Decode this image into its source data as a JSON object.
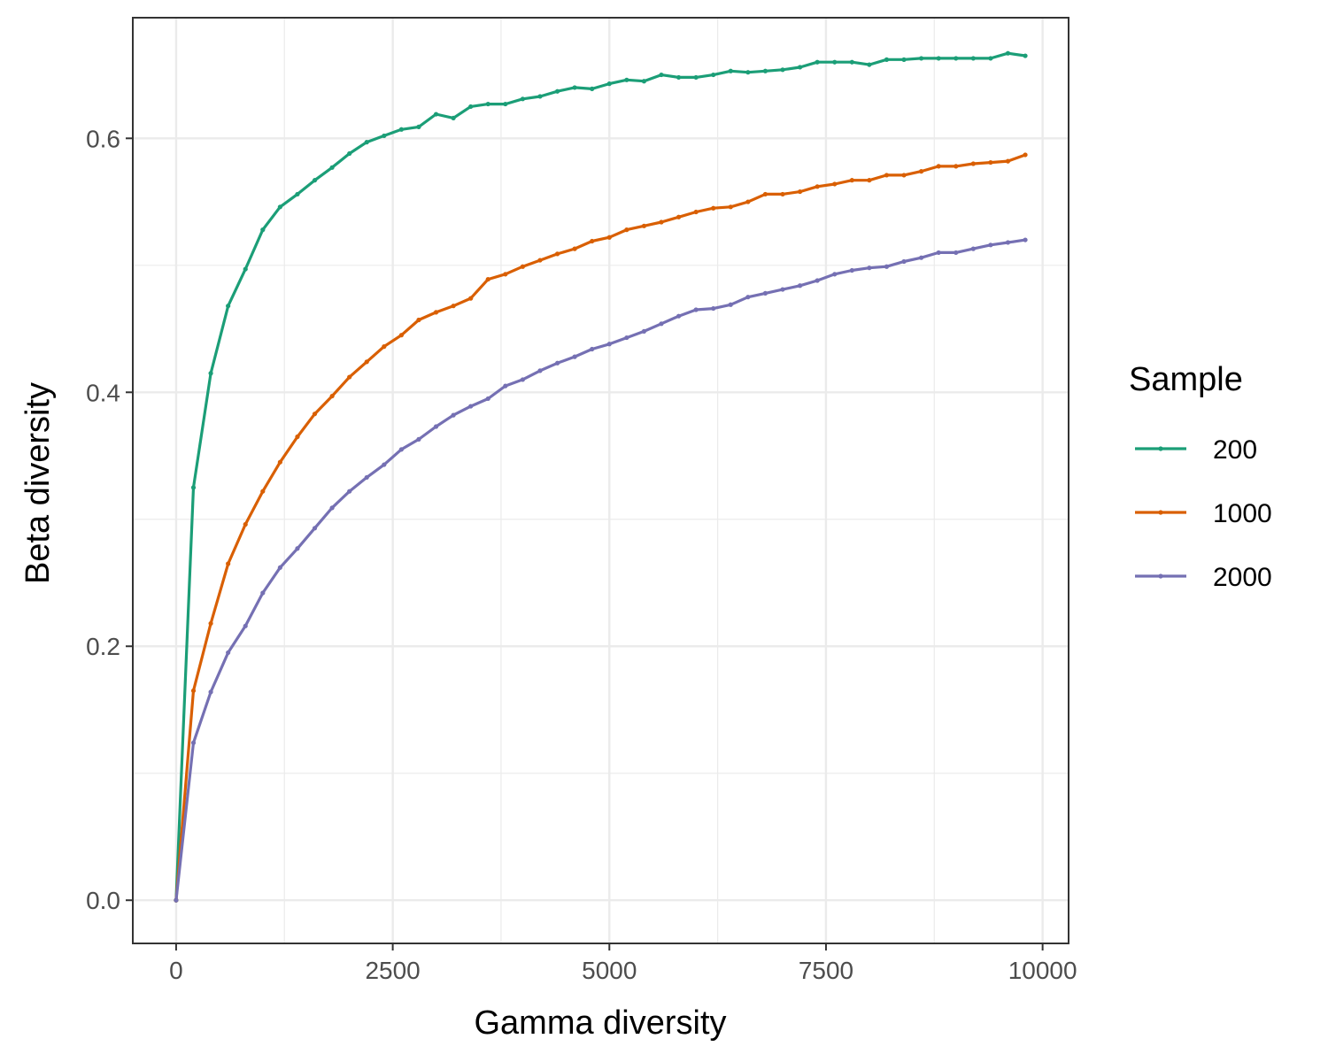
{
  "chart_data": {
    "type": "line",
    "xlabel": "Gamma diversity",
    "ylabel": "Beta diversity",
    "xlim": [
      -500,
      10300
    ],
    "ylim": [
      -0.034,
      0.695
    ],
    "xticks": [
      0,
      2500,
      5000,
      7500,
      10000
    ],
    "xtick_labels": [
      "0",
      "2500",
      "5000",
      "7500",
      "10000"
    ],
    "yticks": [
      0.0,
      0.2,
      0.4,
      0.6
    ],
    "ytick_labels": [
      "0.0",
      "0.2",
      "0.4",
      "0.6"
    ],
    "grid": true,
    "legend": {
      "title": "Sample",
      "position": "right"
    },
    "x": [
      0,
      200,
      400,
      600,
      800,
      1000,
      1200,
      1400,
      1600,
      1800,
      2000,
      2200,
      2400,
      2600,
      2800,
      3000,
      3200,
      3400,
      3600,
      3800,
      4000,
      4200,
      4400,
      4600,
      4800,
      5000,
      5200,
      5400,
      5600,
      5800,
      6000,
      6200,
      6400,
      6600,
      6800,
      7000,
      7200,
      7400,
      7600,
      7800,
      8000,
      8200,
      8400,
      8600,
      8800,
      9000,
      9200,
      9400,
      9600,
      9800
    ],
    "series": [
      {
        "name": "200",
        "color": "#1b9e77",
        "values": [
          0.0,
          0.325,
          0.415,
          0.468,
          0.497,
          0.528,
          0.546,
          0.556,
          0.567,
          0.577,
          0.588,
          0.597,
          0.602,
          0.607,
          0.609,
          0.619,
          0.616,
          0.625,
          0.627,
          0.627,
          0.631,
          0.633,
          0.637,
          0.64,
          0.639,
          0.643,
          0.646,
          0.645,
          0.65,
          0.648,
          0.648,
          0.65,
          0.653,
          0.652,
          0.653,
          0.654,
          0.656,
          0.66,
          0.66,
          0.66,
          0.658,
          0.662,
          0.662,
          0.663,
          0.663,
          0.663,
          0.663,
          0.663,
          0.667,
          0.665
        ]
      },
      {
        "name": "1000",
        "color": "#d95f02",
        "values": [
          0.0,
          0.165,
          0.218,
          0.265,
          0.296,
          0.322,
          0.345,
          0.365,
          0.383,
          0.397,
          0.412,
          0.424,
          0.436,
          0.445,
          0.457,
          0.463,
          0.468,
          0.474,
          0.489,
          0.493,
          0.499,
          0.504,
          0.509,
          0.513,
          0.519,
          0.522,
          0.528,
          0.531,
          0.534,
          0.538,
          0.542,
          0.545,
          0.546,
          0.55,
          0.556,
          0.556,
          0.558,
          0.562,
          0.564,
          0.567,
          0.567,
          0.571,
          0.571,
          0.574,
          0.578,
          0.578,
          0.58,
          0.581,
          0.582,
          0.587
        ]
      },
      {
        "name": "2000",
        "color": "#7570b3",
        "values": [
          0.0,
          0.124,
          0.164,
          0.195,
          0.216,
          0.242,
          0.262,
          0.277,
          0.293,
          0.309,
          0.322,
          0.333,
          0.343,
          0.355,
          0.363,
          0.373,
          0.382,
          0.389,
          0.395,
          0.405,
          0.41,
          0.417,
          0.423,
          0.428,
          0.434,
          0.438,
          0.443,
          0.448,
          0.454,
          0.46,
          0.465,
          0.466,
          0.469,
          0.475,
          0.478,
          0.481,
          0.484,
          0.488,
          0.493,
          0.496,
          0.498,
          0.499,
          0.503,
          0.506,
          0.51,
          0.51,
          0.513,
          0.516,
          0.518,
          0.52
        ]
      }
    ]
  }
}
